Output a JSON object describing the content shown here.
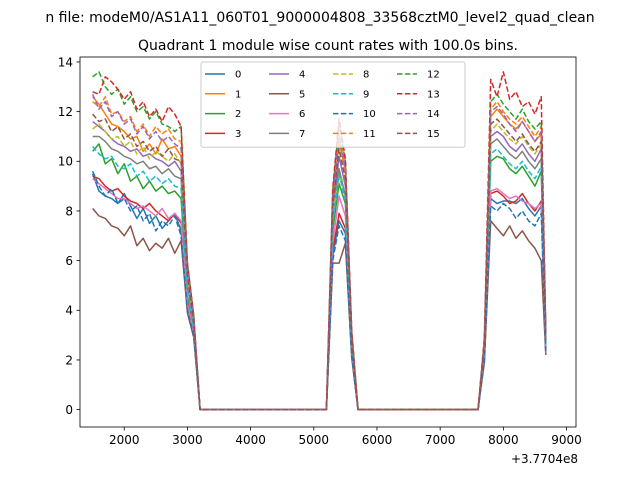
{
  "figure": {
    "suptitle": "n file: modeM0/AS1A11_060T01_9000004808_33568cztM0_level2_quad_clean"
  },
  "chart_data": {
    "type": "line",
    "title": "Quadrant 1 module wise count rates with 100.0s bins.",
    "xlabel": "",
    "ylabel": "",
    "x_offset_label": "+3.7704e8",
    "xlim": [
      1300,
      9150
    ],
    "ylim": [
      -0.7,
      14.2
    ],
    "xticks": [
      2000,
      3000,
      4000,
      5000,
      6000,
      7000,
      8000,
      9000
    ],
    "yticks": [
      0,
      2,
      4,
      6,
      8,
      10,
      12,
      14
    ],
    "grid": false,
    "legend": {
      "placement": "upper-center",
      "ncol": 4
    },
    "x": [
      1500,
      1600,
      1700,
      1800,
      1900,
      2000,
      2100,
      2200,
      2300,
      2400,
      2500,
      2600,
      2700,
      2800,
      2900,
      3000,
      3100,
      3200,
      3300,
      3400,
      3500,
      3600,
      3700,
      3800,
      3900,
      4000,
      4100,
      4200,
      4300,
      4400,
      4500,
      4600,
      4700,
      4800,
      4900,
      5000,
      5100,
      5200,
      5300,
      5400,
      5500,
      5600,
      5700,
      5800,
      5900,
      6000,
      6100,
      6200,
      6300,
      6400,
      6500,
      6600,
      6700,
      6800,
      6900,
      7000,
      7100,
      7200,
      7300,
      7400,
      7500,
      7600,
      7700,
      7800,
      7900,
      8000,
      8100,
      8200,
      8300,
      8400,
      8500,
      8600,
      8672
    ],
    "series": [
      {
        "name": "0",
        "color": "#1f77b4",
        "dash": "solid",
        "values": [
          9.5,
          8.8,
          8.6,
          8.5,
          8.3,
          8.7,
          8.2,
          7.7,
          8.1,
          7.5,
          7.8,
          7.3,
          7.6,
          7.9,
          7.2,
          4.2,
          3.1,
          0,
          0,
          0,
          0,
          0,
          0,
          0,
          0,
          0,
          0,
          0,
          0,
          0,
          0,
          0,
          0,
          0,
          0,
          0,
          0,
          0,
          6.2,
          7.6,
          7.1,
          2.3,
          0,
          0,
          0,
          0,
          0,
          0,
          0,
          0,
          0,
          0,
          0,
          0,
          0,
          0,
          0,
          0,
          0,
          0,
          0,
          0,
          2.1,
          8.5,
          8.3,
          8.4,
          8.4,
          8.3,
          8.5,
          8.1,
          7.8,
          8.2,
          2.4
        ]
      },
      {
        "name": "1",
        "color": "#ff7f0e",
        "dash": "solid",
        "values": [
          12.6,
          12.3,
          11.9,
          11.5,
          11.4,
          11.2,
          10.9,
          11.0,
          10.4,
          10.7,
          10.3,
          10.9,
          10.5,
          10.6,
          10.2,
          5.6,
          3.6,
          0,
          0,
          0,
          0,
          0,
          0,
          0,
          0,
          0,
          0,
          0,
          0,
          0,
          0,
          0,
          0,
          0,
          0,
          0,
          0,
          0,
          8.4,
          10.8,
          9.6,
          3.0,
          0,
          0,
          0,
          0,
          0,
          0,
          0,
          0,
          0,
          0,
          0,
          0,
          0,
          0,
          0,
          0,
          0,
          0,
          0,
          0,
          2.7,
          11.8,
          12.1,
          11.8,
          11.5,
          11.3,
          11.6,
          11.2,
          10.8,
          11.1,
          3.0
        ]
      },
      {
        "name": "2",
        "color": "#2ca02c",
        "dash": "solid",
        "values": [
          10.4,
          10.7,
          9.9,
          10.1,
          9.5,
          9.9,
          9.2,
          9.4,
          8.9,
          9.2,
          8.8,
          9.0,
          8.7,
          8.8,
          8.5,
          4.5,
          3.2,
          0,
          0,
          0,
          0,
          0,
          0,
          0,
          0,
          0,
          0,
          0,
          0,
          0,
          0,
          0,
          0,
          0,
          0,
          0,
          0,
          0,
          7.2,
          9.1,
          8.3,
          2.6,
          0,
          0,
          0,
          0,
          0,
          0,
          0,
          0,
          0,
          0,
          0,
          0,
          0,
          0,
          0,
          0,
          0,
          0,
          0,
          0,
          2.3,
          10.0,
          10.2,
          10.1,
          9.7,
          9.5,
          9.8,
          9.4,
          9.0,
          9.6,
          2.5
        ]
      },
      {
        "name": "3",
        "color": "#d62728",
        "dash": "solid",
        "values": [
          9.4,
          9.3,
          9.0,
          8.8,
          8.9,
          8.6,
          8.4,
          8.3,
          8.1,
          8.3,
          8.0,
          7.8,
          7.6,
          7.9,
          7.5,
          4.4,
          3.1,
          0,
          0,
          0,
          0,
          0,
          0,
          0,
          0,
          0,
          0,
          0,
          0,
          0,
          0,
          0,
          0,
          0,
          0,
          0,
          0,
          0,
          6.4,
          7.9,
          7.3,
          2.4,
          0,
          0,
          0,
          0,
          0,
          0,
          0,
          0,
          0,
          0,
          0,
          0,
          0,
          0,
          0,
          0,
          0,
          0,
          0,
          0,
          2.1,
          8.7,
          8.8,
          8.6,
          8.3,
          8.4,
          8.7,
          8.3,
          8.0,
          8.4,
          2.3
        ]
      },
      {
        "name": "4",
        "color": "#9467bd",
        "dash": "solid",
        "values": [
          11.6,
          11.4,
          11.2,
          10.9,
          10.7,
          10.6,
          10.4,
          10.5,
          10.2,
          10.3,
          10.1,
          10.0,
          9.8,
          10.0,
          9.6,
          5.2,
          3.5,
          0,
          0,
          0,
          0,
          0,
          0,
          0,
          0,
          0,
          0,
          0,
          0,
          0,
          0,
          0,
          0,
          0,
          0,
          0,
          0,
          0,
          7.9,
          10.2,
          9.0,
          2.8,
          0,
          0,
          0,
          0,
          0,
          0,
          0,
          0,
          0,
          0,
          0,
          0,
          0,
          0,
          0,
          0,
          0,
          0,
          0,
          0,
          2.5,
          11.0,
          11.2,
          11.0,
          10.6,
          10.4,
          10.7,
          10.3,
          10.0,
          10.5,
          2.8
        ]
      },
      {
        "name": "5",
        "color": "#8c564b",
        "dash": "solid",
        "values": [
          8.1,
          7.8,
          7.7,
          7.4,
          7.3,
          7.0,
          7.4,
          6.6,
          6.9,
          6.4,
          6.7,
          6.5,
          6.9,
          6.3,
          6.8,
          3.9,
          2.9,
          0,
          0,
          0,
          0,
          0,
          0,
          0,
          0,
          0,
          0,
          0,
          0,
          0,
          0,
          0,
          0,
          0,
          0,
          0,
          0,
          0,
          5.9,
          5.9,
          6.7,
          2.1,
          0,
          0,
          0,
          0,
          0,
          0,
          0,
          0,
          0,
          0,
          0,
          0,
          0,
          0,
          0,
          0,
          0,
          0,
          0,
          0,
          1.9,
          7.6,
          7.3,
          7.0,
          7.4,
          6.9,
          7.2,
          6.8,
          6.5,
          6.0,
          2.2
        ]
      },
      {
        "name": "6",
        "color": "#e377c2",
        "dash": "solid",
        "values": [
          9.3,
          9.1,
          8.9,
          8.7,
          8.5,
          8.5,
          8.3,
          8.1,
          8.2,
          8.0,
          7.8,
          8.1,
          7.7,
          7.9,
          7.6,
          4.3,
          3.1,
          0,
          0,
          0,
          0,
          0,
          0,
          0,
          0,
          0,
          0,
          0,
          0,
          0,
          0,
          0,
          0,
          0,
          0,
          0,
          0,
          0,
          6.7,
          8.6,
          7.8,
          2.4,
          0,
          0,
          0,
          0,
          0,
          0,
          0,
          0,
          0,
          0,
          0,
          0,
          0,
          0,
          0,
          0,
          0,
          0,
          0,
          0,
          2.2,
          8.8,
          8.9,
          8.7,
          8.5,
          8.6,
          8.4,
          8.3,
          8.1,
          8.3,
          2.3
        ]
      },
      {
        "name": "7",
        "color": "#7f7f7f",
        "dash": "solid",
        "values": [
          11.0,
          11.0,
          10.8,
          10.5,
          10.4,
          10.2,
          10.1,
          9.9,
          10.0,
          9.7,
          9.8,
          9.5,
          9.7,
          9.4,
          9.3,
          5.0,
          3.4,
          0,
          0,
          0,
          0,
          0,
          0,
          0,
          0,
          0,
          0,
          0,
          0,
          0,
          0,
          0,
          0,
          0,
          0,
          0,
          0,
          0,
          7.7,
          9.7,
          8.6,
          2.7,
          0,
          0,
          0,
          0,
          0,
          0,
          0,
          0,
          0,
          0,
          0,
          0,
          0,
          0,
          0,
          0,
          0,
          0,
          0,
          0,
          2.4,
          10.7,
          10.9,
          10.6,
          10.3,
          10.1,
          10.4,
          10.0,
          9.7,
          10.1,
          2.7
        ]
      },
      {
        "name": "8",
        "color": "#bcbd22",
        "dash": "dashed",
        "values": [
          11.3,
          11.5,
          11.2,
          10.9,
          11.0,
          10.6,
          10.8,
          10.3,
          10.6,
          10.1,
          10.4,
          10.2,
          10.0,
          10.3,
          9.9,
          5.3,
          3.6,
          0,
          0,
          0,
          0,
          0,
          0,
          0,
          0,
          0,
          0,
          0,
          0,
          0,
          0,
          0,
          0,
          0,
          0,
          0,
          0,
          0,
          8.0,
          9.3,
          9.2,
          2.9,
          0,
          0,
          0,
          0,
          0,
          0,
          0,
          0,
          0,
          0,
          0,
          0,
          0,
          0,
          0,
          0,
          0,
          0,
          0,
          0,
          2.5,
          11.2,
          11.5,
          11.2,
          10.9,
          10.7,
          11.0,
          10.6,
          10.3,
          10.7,
          2.9
        ]
      },
      {
        "name": "9",
        "color": "#17becf",
        "dash": "dashed",
        "values": [
          10.6,
          10.3,
          10.1,
          10.2,
          9.8,
          9.7,
          9.9,
          9.4,
          9.6,
          9.2,
          9.4,
          9.1,
          9.3,
          9.0,
          8.9,
          4.8,
          3.3,
          0,
          0,
          0,
          0,
          0,
          0,
          0,
          0,
          0,
          0,
          0,
          0,
          0,
          0,
          0,
          0,
          0,
          0,
          0,
          0,
          0,
          7.5,
          9.5,
          8.4,
          2.6,
          0,
          0,
          0,
          0,
          0,
          0,
          0,
          0,
          0,
          0,
          0,
          0,
          0,
          0,
          0,
          0,
          0,
          0,
          0,
          0,
          2.4,
          10.3,
          10.5,
          10.2,
          9.9,
          9.7,
          10.0,
          9.6,
          9.3,
          9.8,
          2.6
        ]
      },
      {
        "name": "10",
        "color": "#1f77b4",
        "dash": "dashed",
        "values": [
          9.6,
          9.0,
          8.6,
          8.9,
          8.3,
          8.5,
          8.0,
          8.2,
          7.6,
          7.9,
          7.2,
          7.6,
          7.4,
          7.8,
          7.0,
          4.0,
          3.0,
          0,
          0,
          0,
          0,
          0,
          0,
          0,
          0,
          0,
          0,
          0,
          0,
          0,
          0,
          0,
          0,
          0,
          0,
          0,
          0,
          0,
          6.0,
          7.4,
          6.8,
          2.2,
          0,
          0,
          0,
          0,
          0,
          0,
          0,
          0,
          0,
          0,
          0,
          0,
          0,
          0,
          0,
          0,
          0,
          0,
          0,
          0,
          2.0,
          8.2,
          8.0,
          8.3,
          8.1,
          7.7,
          8.0,
          7.6,
          7.4,
          7.9,
          2.3
        ]
      },
      {
        "name": "11",
        "color": "#ff7f0e",
        "dash": "dashed",
        "values": [
          12.4,
          12.2,
          12.6,
          11.9,
          12.0,
          11.6,
          11.8,
          11.2,
          11.5,
          11.0,
          11.4,
          11.1,
          11.3,
          10.9,
          10.8,
          5.8,
          3.7,
          0,
          0,
          0,
          0,
          0,
          0,
          0,
          0,
          0,
          0,
          0,
          0,
          0,
          0,
          0,
          0,
          0,
          0,
          0,
          0,
          0,
          8.6,
          11.1,
          9.8,
          3.1,
          0,
          0,
          0,
          0,
          0,
          0,
          0,
          0,
          0,
          0,
          0,
          0,
          0,
          0,
          0,
          0,
          0,
          0,
          0,
          0,
          2.7,
          12.1,
          12.4,
          12.0,
          11.7,
          11.5,
          11.8,
          11.4,
          11.0,
          11.4,
          3.1
        ]
      },
      {
        "name": "12",
        "color": "#2ca02c",
        "dash": "dashed",
        "values": [
          13.4,
          13.6,
          13.0,
          12.7,
          12.9,
          12.3,
          12.6,
          12.0,
          12.2,
          11.7,
          12.0,
          11.5,
          11.4,
          11.2,
          11.4,
          5.9,
          3.8,
          0,
          0,
          0,
          0,
          0,
          0,
          0,
          0,
          0,
          0,
          0,
          0,
          0,
          0,
          0,
          0,
          0,
          0,
          0,
          0,
          0,
          8.8,
          11.5,
          10.0,
          3.2,
          0,
          0,
          0,
          0,
          0,
          0,
          0,
          0,
          0,
          0,
          0,
          0,
          0,
          0,
          0,
          0,
          0,
          0,
          0,
          0,
          2.8,
          12.4,
          12.7,
          12.3,
          12.0,
          11.7,
          12.1,
          11.6,
          11.3,
          11.6,
          3.1
        ]
      },
      {
        "name": "13",
        "color": "#d62728",
        "dash": "dashed",
        "values": [
          12.8,
          12.7,
          13.4,
          13.2,
          12.9,
          12.5,
          12.8,
          12.1,
          12.4,
          11.8,
          12.1,
          11.6,
          12.2,
          11.9,
          11.4,
          5.9,
          3.8,
          0,
          0,
          0,
          0,
          0,
          0,
          0,
          0,
          0,
          0,
          0,
          0,
          0,
          0,
          0,
          0,
          0,
          0,
          0,
          0,
          0,
          8.9,
          11.7,
          10.1,
          3.2,
          0,
          0,
          0,
          0,
          0,
          0,
          0,
          0,
          0,
          0,
          0,
          0,
          0,
          0,
          0,
          0,
          0,
          0,
          0,
          0,
          2.9,
          13.3,
          12.6,
          13.6,
          12.5,
          12.8,
          12.2,
          12.4,
          11.9,
          12.6,
          3.2
        ]
      },
      {
        "name": "14",
        "color": "#9467bd",
        "dash": "dashed",
        "values": [
          12.7,
          12.1,
          12.4,
          11.8,
          12.0,
          11.5,
          11.7,
          11.1,
          11.4,
          10.9,
          11.2,
          10.8,
          11.0,
          10.7,
          10.5,
          5.7,
          3.7,
          0,
          0,
          0,
          0,
          0,
          0,
          0,
          0,
          0,
          0,
          0,
          0,
          0,
          0,
          0,
          0,
          0,
          0,
          0,
          0,
          0,
          8.5,
          11.0,
          9.7,
          3.0,
          0,
          0,
          0,
          0,
          0,
          0,
          0,
          0,
          0,
          0,
          0,
          0,
          0,
          0,
          0,
          0,
          0,
          0,
          0,
          0,
          2.7,
          12.0,
          12.2,
          11.9,
          11.5,
          11.2,
          11.6,
          11.2,
          10.8,
          11.2,
          3.0
        ]
      },
      {
        "name": "15",
        "color": "#8c564b",
        "dash": "dashed",
        "values": [
          11.9,
          11.6,
          11.7,
          11.2,
          11.4,
          10.9,
          11.1,
          10.6,
          10.8,
          10.4,
          10.6,
          10.2,
          10.5,
          10.1,
          10.0,
          5.4,
          3.5,
          0,
          0,
          0,
          0,
          0,
          0,
          0,
          0,
          0,
          0,
          0,
          0,
          0,
          0,
          0,
          0,
          0,
          0,
          0,
          0,
          0,
          8.2,
          10.5,
          9.3,
          2.9,
          0,
          0,
          0,
          0,
          0,
          0,
          0,
          0,
          0,
          0,
          0,
          0,
          0,
          0,
          0,
          0,
          0,
          0,
          0,
          0,
          2.6,
          11.5,
          11.7,
          11.4,
          11.1,
          10.8,
          11.1,
          10.7,
          10.4,
          10.8,
          2.9
        ]
      }
    ]
  }
}
